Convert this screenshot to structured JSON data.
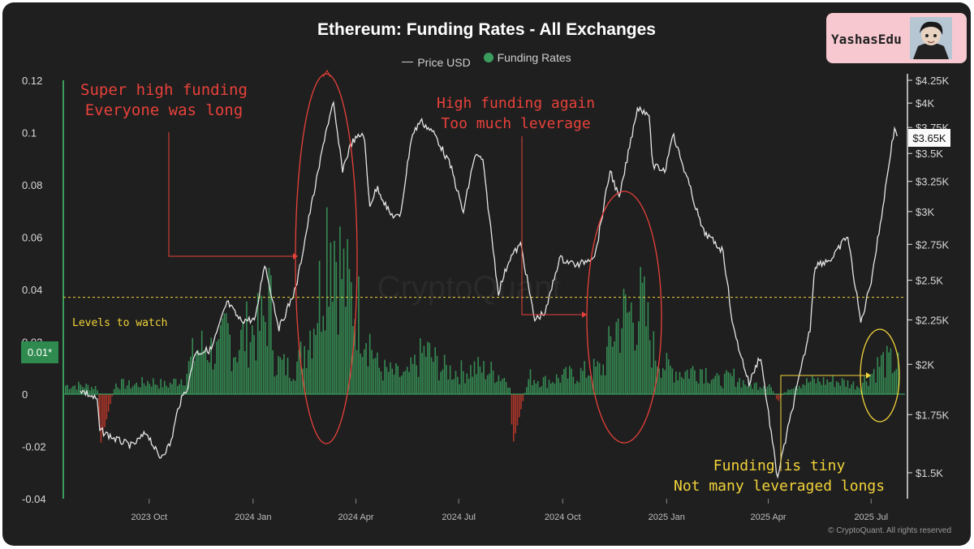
{
  "title": "Ethereum: Funding Rates - All Exchanges",
  "legend": {
    "price_label": "Price USD",
    "funding_label": "Funding Rates"
  },
  "badge": {
    "text": "YashasEdu"
  },
  "footer": "© CryptoQuant. All rights reserved",
  "watermark": "CryptoQuant",
  "current_funding_label": "0.01*",
  "current_price_label": "$3.65K",
  "annotations": {
    "super_high_1": "Super high funding",
    "super_high_2": "Everyone was long",
    "high_again_1": "High funding again",
    "high_again_2": "Too much leverage",
    "levels": "Levels to watch",
    "tiny_1": "Funding is tiny",
    "tiny_2": "Not many leveraged longs"
  },
  "colors": {
    "funding": "#3a9d5d",
    "negative": "#c0392b",
    "price": "#e6e6e6",
    "red_annotation": "#e8413a",
    "yellow_annotation": "#f2d33a"
  },
  "chart_data": {
    "type": "bar",
    "title": "Ethereum: Funding Rates - All Exchanges",
    "x_ticks": [
      "2023 Oct",
      "2024 Jan",
      "2024 Apr",
      "2024 Jul",
      "2024 Oct",
      "2025 Jan",
      "2025 Apr",
      "2025 Jul"
    ],
    "y_left_ticks": [
      "0.12",
      "0.1",
      "0.08",
      "0.06",
      "0.04",
      "0.02",
      "0",
      "-0.02",
      "-0.04"
    ],
    "y_left_range": [
      -0.04,
      0.12
    ],
    "y_right_ticks": [
      "$4.25K",
      "$4K",
      "$3.75K",
      "$3.5K",
      "$3.25K",
      "$3K",
      "$2.75K",
      "$2.5K",
      "$2.25K",
      "$2K",
      "$1.75K",
      "$1.5K"
    ],
    "y_right_range": [
      1400,
      4250
    ],
    "y_right_scale": "log",
    "levels_to_watch": 0.037,
    "series": [
      {
        "name": "Price USD",
        "points": [
          [
            "2023-08-01",
            1870
          ],
          [
            "2023-08-16",
            1820
          ],
          [
            "2023-08-18",
            1680
          ],
          [
            "2023-09-01",
            1640
          ],
          [
            "2023-09-16",
            1610
          ],
          [
            "2023-09-29",
            1670
          ],
          [
            "2023-10-10",
            1560
          ],
          [
            "2023-10-20",
            1620
          ],
          [
            "2023-10-27",
            1790
          ],
          [
            "2023-11-05",
            1900
          ],
          [
            "2023-11-10",
            2060
          ],
          [
            "2023-11-25",
            2080
          ],
          [
            "2023-12-09",
            2360
          ],
          [
            "2023-12-20",
            2250
          ],
          [
            "2024-01-03",
            2250
          ],
          [
            "2024-01-11",
            2620
          ],
          [
            "2024-01-24",
            2200
          ],
          [
            "2024-02-08",
            2450
          ],
          [
            "2024-02-20",
            2980
          ],
          [
            "2024-02-28",
            3350
          ],
          [
            "2024-03-05",
            3700
          ],
          [
            "2024-03-12",
            3990
          ],
          [
            "2024-03-20",
            3350
          ],
          [
            "2024-03-28",
            3600
          ],
          [
            "2024-04-08",
            3700
          ],
          [
            "2024-04-13",
            3050
          ],
          [
            "2024-04-20",
            3200
          ],
          [
            "2024-05-01",
            2980
          ],
          [
            "2024-05-10",
            2950
          ],
          [
            "2024-05-20",
            3650
          ],
          [
            "2024-05-28",
            3820
          ],
          [
            "2024-06-10",
            3680
          ],
          [
            "2024-06-24",
            3380
          ],
          [
            "2024-07-05",
            2990
          ],
          [
            "2024-07-15",
            3480
          ],
          [
            "2024-07-22",
            3450
          ],
          [
            "2024-08-05",
            2420
          ],
          [
            "2024-08-15",
            2650
          ],
          [
            "2024-08-25",
            2750
          ],
          [
            "2024-09-06",
            2250
          ],
          [
            "2024-09-16",
            2300
          ],
          [
            "2024-09-28",
            2650
          ],
          [
            "2024-10-15",
            2600
          ],
          [
            "2024-10-30",
            2680
          ],
          [
            "2024-11-12",
            3350
          ],
          [
            "2024-11-20",
            3100
          ],
          [
            "2024-12-06",
            3950
          ],
          [
            "2024-12-16",
            3900
          ],
          [
            "2024-12-20",
            3380
          ],
          [
            "2024-12-31",
            3350
          ],
          [
            "2025-01-06",
            3700
          ],
          [
            "2025-01-20",
            3250
          ],
          [
            "2025-02-02",
            2850
          ],
          [
            "2025-02-20",
            2700
          ],
          [
            "2025-03-01",
            2200
          ],
          [
            "2025-03-15",
            1900
          ],
          [
            "2025-03-25",
            2050
          ],
          [
            "2025-04-09",
            1480
          ],
          [
            "2025-04-22",
            1770
          ],
          [
            "2025-05-08",
            2200
          ],
          [
            "2025-05-12",
            2600
          ],
          [
            "2025-05-28",
            2650
          ],
          [
            "2025-06-10",
            2820
          ],
          [
            "2025-06-22",
            2230
          ],
          [
            "2025-07-01",
            2500
          ],
          [
            "2025-07-10",
            2950
          ],
          [
            "2025-07-18",
            3500
          ],
          [
            "2025-07-22",
            3750
          ],
          [
            "2025-07-25",
            3650
          ]
        ]
      },
      {
        "name": "Funding Rates",
        "points": [
          [
            "2023-08-01",
            0.004
          ],
          [
            "2023-08-16",
            0.003
          ],
          [
            "2023-08-18",
            -0.02
          ],
          [
            "2023-09-01",
            0.005
          ],
          [
            "2023-09-16",
            0.004
          ],
          [
            "2023-10-01",
            0.006
          ],
          [
            "2023-10-16",
            0.004
          ],
          [
            "2023-11-01",
            0.008
          ],
          [
            "2023-11-10",
            0.02
          ],
          [
            "2023-11-20",
            0.022
          ],
          [
            "2023-12-01",
            0.018
          ],
          [
            "2023-12-08",
            0.03
          ],
          [
            "2023-12-15",
            0.02
          ],
          [
            "2023-12-25",
            0.028
          ],
          [
            "2024-01-05",
            0.03
          ],
          [
            "2024-01-11",
            0.034
          ],
          [
            "2024-01-15",
            0.045
          ],
          [
            "2024-01-20",
            0.015
          ],
          [
            "2024-02-01",
            0.012
          ],
          [
            "2024-02-10",
            0.015
          ],
          [
            "2024-02-20",
            0.03
          ],
          [
            "2024-03-01",
            0.05
          ],
          [
            "2024-03-05",
            0.075
          ],
          [
            "2024-03-10",
            0.08
          ],
          [
            "2024-03-15",
            0.065
          ],
          [
            "2024-03-22",
            0.05
          ],
          [
            "2024-04-01",
            0.04
          ],
          [
            "2024-04-10",
            0.03
          ],
          [
            "2024-04-20",
            0.012
          ],
          [
            "2024-05-01",
            0.01
          ],
          [
            "2024-05-15",
            0.008
          ],
          [
            "2024-06-01",
            0.02
          ],
          [
            "2024-06-15",
            0.012
          ],
          [
            "2024-07-01",
            0.01
          ],
          [
            "2024-07-15",
            0.012
          ],
          [
            "2024-08-01",
            0.01
          ],
          [
            "2024-08-15",
            0.006
          ],
          [
            "2024-08-17",
            -0.02
          ],
          [
            "2024-09-01",
            0.008
          ],
          [
            "2024-09-15",
            0.006
          ],
          [
            "2024-10-01",
            0.008
          ],
          [
            "2024-10-20",
            0.01
          ],
          [
            "2024-11-05",
            0.012
          ],
          [
            "2024-11-10",
            0.02
          ],
          [
            "2024-11-15",
            0.03
          ],
          [
            "2024-11-22",
            0.035
          ],
          [
            "2024-12-01",
            0.038
          ],
          [
            "2024-12-10",
            0.04
          ],
          [
            "2024-12-20",
            0.02
          ],
          [
            "2025-01-01",
            0.012
          ],
          [
            "2025-01-15",
            0.01
          ],
          [
            "2025-02-01",
            0.012
          ],
          [
            "2025-02-15",
            0.006
          ],
          [
            "2025-03-01",
            0.008
          ],
          [
            "2025-03-15",
            0.004
          ],
          [
            "2025-04-01",
            0.005
          ],
          [
            "2025-04-09",
            -0.003
          ],
          [
            "2025-04-20",
            0.004
          ],
          [
            "2025-05-10",
            0.006
          ],
          [
            "2025-06-01",
            0.006
          ],
          [
            "2025-06-20",
            0.004
          ],
          [
            "2025-07-01",
            0.01
          ],
          [
            "2025-07-10",
            0.015
          ],
          [
            "2025-07-20",
            0.014
          ],
          [
            "2025-07-25",
            0.013
          ]
        ]
      }
    ]
  }
}
